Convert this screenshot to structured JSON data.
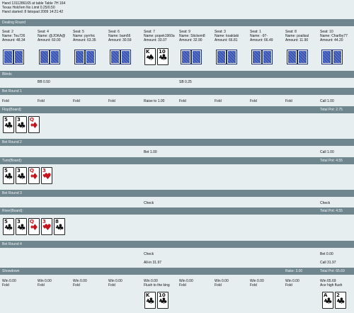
{
  "header": {
    "line1": "Hand 1311286165 at table Table 7H 164",
    "line2": "Texas Hold'em No Limit 0.25/0.50",
    "line3": "Hand started: 8 listopad 2009 14:21:42"
  },
  "sections": {
    "dealing": "Dealing Round",
    "blinds": "Blinds",
    "bet1": "Bet Round 1",
    "flop": "Flop(Board):",
    "bet2": "Bet Round 2",
    "turn": "Turn(Board):",
    "bet3": "Bet Round 3",
    "river": "River(Board):",
    "bet4": "Bet Round 4",
    "showdown": "Showdown"
  },
  "totals": {
    "flop": "Total Pot: 2.75",
    "turn": "Total Pot: 4.55",
    "river": "Total Pot: 4.55",
    "rake": "Rake: 3.00",
    "showdown": "Total Pot: 65.69"
  },
  "seats": [
    {
      "seat": "Seat: 2",
      "name": "Name: Tou726",
      "amount": "Amount: 48.34"
    },
    {
      "seat": "Seat: 4",
      "name": "Name: @JOKA@",
      "amount": "Amount: 60.00"
    },
    {
      "seat": "Seat: 5",
      "name": "Name: pyrrhic",
      "amount": "Amount: 63.35"
    },
    {
      "seat": "Seat: 6",
      "name": "Name: bam66",
      "amount": "Amount: 30.59"
    },
    {
      "seat": "Seat: 7",
      "name": "Name: popek1960a",
      "amount": "Amount: 33.07"
    },
    {
      "seat": "Seat: 9",
      "name": "Name: Stickem8",
      "amount": "Amount: 32.90"
    },
    {
      "seat": "Seat: 3",
      "name": "Name: koaklaki",
      "amount": "Amount: 66.81"
    },
    {
      "seat": "Seat: 1",
      "name": "Name: -97-",
      "amount": "Amount: 66.49"
    },
    {
      "seat": "Seat: 8",
      "name": "Name: poalisal",
      "amount": "Amount: 11.90"
    },
    {
      "seat": "Seat: 10",
      "name": "Name: Charlby77",
      "amount": "Amount: 44.20"
    }
  ],
  "blinds": {
    "bb": "BB 0.50",
    "sb": "SB 0.25"
  },
  "bet1": [
    "Fold",
    "Fold",
    "Fold",
    "Fold",
    "Raise to 1.00",
    "Fold",
    "Fold",
    "Fold",
    "Fold",
    "Call 1.00"
  ],
  "bet2": {
    "bet": "Bet 1.00",
    "call": "Call 1.00"
  },
  "bet3": {
    "check1": "Check",
    "check2": "Check"
  },
  "bet4": {
    "check": "Check",
    "bet": "Bet 0.00",
    "allin": "All-in 31.97",
    "call": "Call 31.97"
  },
  "showdown": [
    {
      "win": "Win 0.00",
      "result": "Fold"
    },
    {
      "win": "Win 0.00",
      "result": "Fold"
    },
    {
      "win": "Win 0.00",
      "result": "Fold"
    },
    {
      "win": "Win 0.00",
      "result": "Fold"
    },
    {
      "win": "Win 0.00",
      "result": "Flush to the king"
    },
    {
      "win": "Win 0.00",
      "result": "Fold"
    },
    {
      "win": "Win 0.00",
      "result": "Fold"
    },
    {
      "win": "Win 0.00",
      "result": "Fold"
    },
    {
      "win": "Win 0.00",
      "result": "Fold"
    },
    {
      "win": "Win 65.69",
      "result": "Ace high flush"
    }
  ],
  "cards": {
    "dealt": [
      {
        "rank": "K",
        "suit": "♠",
        "color": "#111111"
      },
      {
        "rank": "10",
        "suit": "♣",
        "color": "#111111"
      }
    ],
    "flop": [
      {
        "rank": "5",
        "suit": "♣",
        "color": "#111111"
      },
      {
        "rank": "3",
        "suit": "♣",
        "color": "#111111"
      },
      {
        "rank": "Q",
        "suit": "♦",
        "color": "#c8121b"
      }
    ],
    "turn": [
      {
        "rank": "5",
        "suit": "♣",
        "color": "#111111"
      },
      {
        "rank": "3",
        "suit": "♣",
        "color": "#111111"
      },
      {
        "rank": "Q",
        "suit": "♦",
        "color": "#c8121b"
      },
      {
        "rank": "3",
        "suit": "♥",
        "color": "#c8121b"
      }
    ],
    "river": [
      {
        "rank": "5",
        "suit": "♣",
        "color": "#111111"
      },
      {
        "rank": "3",
        "suit": "♣",
        "color": "#111111"
      },
      {
        "rank": "Q",
        "suit": "♦",
        "color": "#c8121b"
      },
      {
        "rank": "3",
        "suit": "♥",
        "color": "#c8121b"
      },
      {
        "rank": "8",
        "suit": "♣",
        "color": "#111111"
      }
    ],
    "showdown_left": [
      {
        "rank": "K",
        "suit": "♣",
        "color": "#111111"
      },
      {
        "rank": "10",
        "suit": "♣",
        "color": "#111111"
      }
    ],
    "showdown_right": [
      {
        "rank": "A",
        "suit": "♣",
        "color": "#111111"
      },
      {
        "rank": "2",
        "suit": "♣",
        "color": "#111111"
      }
    ]
  },
  "colors": {
    "band": "#6f868e",
    "card_back": "#3a55b4",
    "red_suit": "#c8121b"
  }
}
